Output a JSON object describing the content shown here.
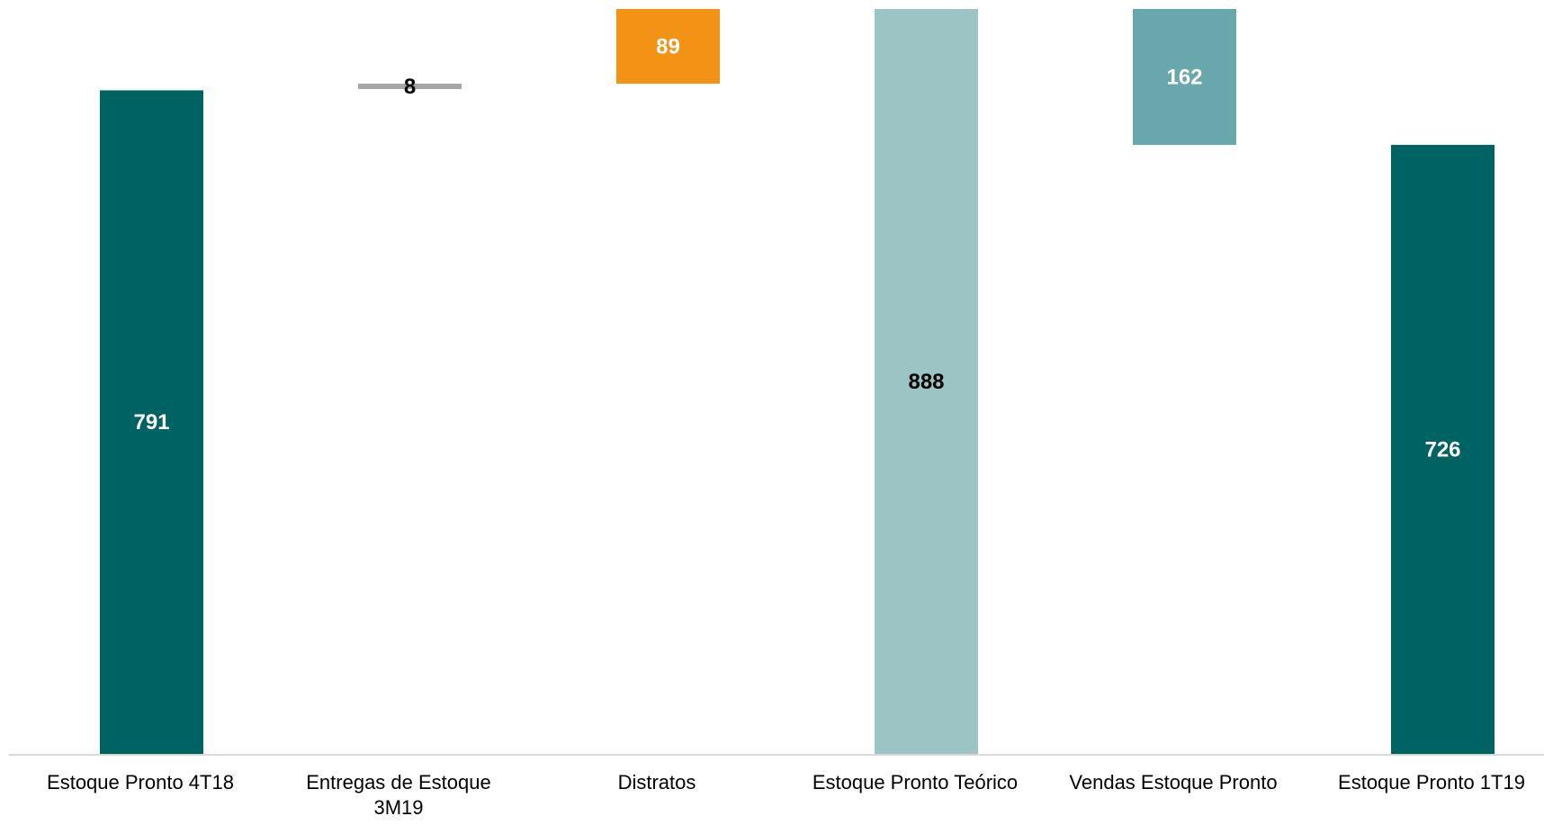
{
  "chart_data": {
    "type": "bar",
    "subtype": "waterfall",
    "title": "",
    "xlabel": "",
    "ylabel": "",
    "ylim": [
      0,
      888
    ],
    "grid": false,
    "legend": "none",
    "categories": [
      "Estoque Pronto 4T18",
      "Entregas de Estoque 3M19",
      "Distratos",
      "Estoque Pronto Teórico",
      "Vendas Estoque Pronto",
      "Estoque Pronto 1T19"
    ],
    "bars": [
      {
        "label": "791",
        "base": 0,
        "top": 791,
        "color": "#006363",
        "label_color": "#ffffff"
      },
      {
        "label": "8",
        "base": 791,
        "top": 799,
        "color": "#a6a6a6",
        "label_color": "#000000"
      },
      {
        "label": "89",
        "base": 799,
        "top": 888,
        "color": "#f39316",
        "label_color": "#ffffff"
      },
      {
        "label": "888",
        "base": 0,
        "top": 888,
        "color": "#9cc4c5",
        "label_color": "#000000"
      },
      {
        "label": "162",
        "base": 726,
        "top": 888,
        "color": "#68a7ab",
        "label_color": "#ffffff"
      },
      {
        "label": "726",
        "base": 0,
        "top": 726,
        "color": "#006363",
        "label_color": "#ffffff"
      }
    ]
  }
}
